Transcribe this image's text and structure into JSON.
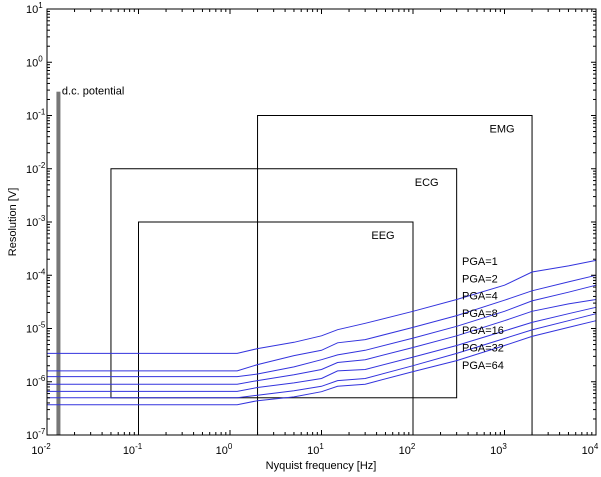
{
  "chart_data": {
    "type": "line",
    "title": "",
    "xlabel": "Nyquist frequency [Hz]",
    "ylabel": "Resolution [V]",
    "xscale": "log",
    "yscale": "log",
    "xlim": [
      0.01,
      10000
    ],
    "ylim": [
      1e-07,
      10
    ],
    "grid": false,
    "x_ticks": [
      {
        "value": 0.01,
        "base": "10",
        "exp": "-2"
      },
      {
        "value": 0.1,
        "base": "10",
        "exp": "-1"
      },
      {
        "value": 1,
        "base": "10",
        "exp": "0"
      },
      {
        "value": 10,
        "base": "10",
        "exp": "1"
      },
      {
        "value": 100,
        "base": "10",
        "exp": "2"
      },
      {
        "value": 1000,
        "base": "10",
        "exp": "3"
      },
      {
        "value": 10000,
        "base": "10",
        "exp": "4"
      }
    ],
    "y_ticks": [
      {
        "value": 1e-07,
        "base": "10",
        "exp": "-7"
      },
      {
        "value": 1e-06,
        "base": "10",
        "exp": "-6"
      },
      {
        "value": 1e-05,
        "base": "10",
        "exp": "-5"
      },
      {
        "value": 0.0001,
        "base": "10",
        "exp": "-4"
      },
      {
        "value": 0.001,
        "base": "10",
        "exp": "-3"
      },
      {
        "value": 0.01,
        "base": "10",
        "exp": "-2"
      },
      {
        "value": 0.1,
        "base": "10",
        "exp": "-1"
      },
      {
        "value": 1,
        "base": "10",
        "exp": "0"
      },
      {
        "value": 10,
        "base": "10",
        "exp": "1"
      }
    ],
    "line_color": "#3333dd",
    "series": [
      {
        "name": "PGA=1",
        "x": [
          0.01,
          1.2,
          2,
          5,
          10,
          15,
          30,
          100,
          300,
          1000,
          2000,
          5000,
          10000
        ],
        "y": [
          3.4e-06,
          3.4e-06,
          4.2e-06,
          5.5e-06,
          7.3e-06,
          9.5e-06,
          1.25e-05,
          2.1e-05,
          3.5e-05,
          6.5e-05,
          0.000115,
          0.00015,
          0.00019
        ]
      },
      {
        "name": "PGA=2",
        "x": [
          0.01,
          1.2,
          2,
          5,
          10,
          15,
          30,
          100,
          300,
          1000,
          2000,
          5000,
          10000
        ],
        "y": [
          1.6e-06,
          1.6e-06,
          2.1e-06,
          3.1e-06,
          3.9e-06,
          5.4e-06,
          6.2e-06,
          1.05e-05,
          1.75e-05,
          3.4e-05,
          5.1e-05,
          7.5e-05,
          0.0001
        ]
      },
      {
        "name": "PGA=4",
        "x": [
          0.01,
          1.2,
          2,
          5,
          10,
          15,
          30,
          100,
          300,
          1000,
          2000,
          5000,
          10000
        ],
        "y": [
          1.25e-06,
          1.25e-06,
          1.4e-06,
          1.9e-06,
          2.6e-06,
          3.2e-06,
          3.9e-06,
          6.6e-06,
          1.1e-05,
          2.1e-05,
          3.3e-05,
          4.8e-05,
          6.5e-05
        ]
      },
      {
        "name": "PGA=8",
        "x": [
          0.01,
          1.2,
          2,
          5,
          10,
          15,
          30,
          100,
          300,
          1000,
          2000,
          5000,
          10000
        ],
        "y": [
          9e-07,
          9e-07,
          1.05e-06,
          1.35e-06,
          1.7e-06,
          2.3e-06,
          2.6e-06,
          4.4e-06,
          7.3e-06,
          1.4e-05,
          2.1e-05,
          2.9e-05,
          3.5e-05
        ]
      },
      {
        "name": "PGA=16",
        "x": [
          0.01,
          1.2,
          2,
          5,
          10,
          15,
          30,
          100,
          300,
          1000,
          2000,
          5000,
          10000
        ],
        "y": [
          6.6e-07,
          6.6e-07,
          7.8e-07,
          9.5e-07,
          1.15e-06,
          1.6e-06,
          1.7e-06,
          2.9e-06,
          4.8e-06,
          9e-06,
          1.3e-05,
          1.9e-05,
          2.5e-05
        ]
      },
      {
        "name": "PGA=32",
        "x": [
          0.01,
          1.2,
          2,
          5,
          10,
          15,
          30,
          100,
          300,
          1000,
          2000,
          5000,
          10000
        ],
        "y": [
          5e-07,
          5e-07,
          5.6e-07,
          6.8e-07,
          8.2e-07,
          1.05e-06,
          1.15e-06,
          2e-06,
          3.4e-06,
          6.5e-06,
          9.4e-06,
          1.4e-05,
          1.9e-05
        ]
      },
      {
        "name": "PGA=64",
        "x": [
          0.01,
          1.2,
          2,
          5,
          10,
          15,
          30,
          100,
          300,
          1000,
          2000,
          5000,
          10000
        ],
        "y": [
          3.7e-07,
          3.7e-07,
          4.4e-07,
          5.2e-07,
          6.5e-07,
          8.2e-07,
          9e-07,
          1.55e-06,
          2.5e-06,
          4.8e-06,
          7.1e-06,
          1.05e-05,
          1.4e-05
        ]
      }
    ],
    "regions": [
      {
        "label": "EMG",
        "x": [
          2,
          2000
        ],
        "y": [
          1e-07,
          0.1
        ]
      },
      {
        "label": "ECG",
        "x": [
          0.05,
          300
        ],
        "y": [
          5e-07,
          0.01
        ]
      },
      {
        "label": "EEG",
        "x": [
          0.1,
          100
        ],
        "y": [
          1e-07,
          0.001
        ]
      }
    ],
    "dc_marker": {
      "label": "d.c. potential",
      "x": 0.0135,
      "y_top": 0.28
    }
  }
}
